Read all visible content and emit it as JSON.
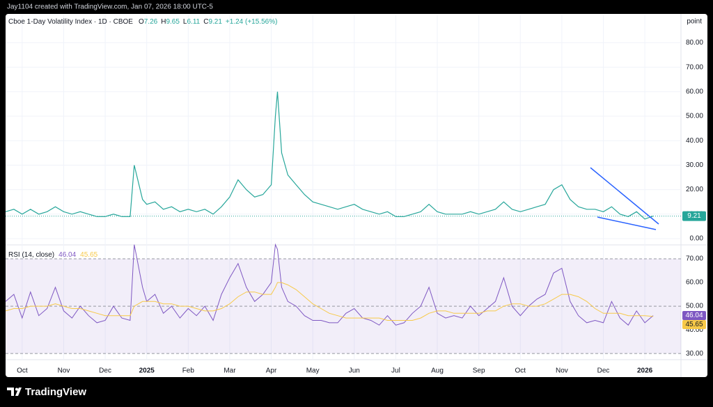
{
  "header": "Jay1104 created with TradingView.com, Jan 07, 2026 18:00 UTC-5",
  "brand": "TradingView",
  "chart_data": [
    {
      "type": "line",
      "title": "Cboe 1-Day Volatility Index · 1D · CBOE",
      "ohlc": [
        {
          "label": "O",
          "value": "7.26"
        },
        {
          "label": "H",
          "value": "9.65"
        },
        {
          "label": "L",
          "value": "6.11"
        },
        {
          "label": "C",
          "value": "9.21"
        }
      ],
      "change": "+1.24 (+15.56%)",
      "y_axis_label": "point",
      "color": "#26a69a",
      "grid": true,
      "xlim": [
        0.6,
        16.87
      ],
      "xticks": [
        {
          "value": 1,
          "label": "Oct"
        },
        {
          "value": 2,
          "label": "Nov"
        },
        {
          "value": 3,
          "label": "Dec"
        },
        {
          "value": 4,
          "label": "2025"
        },
        {
          "value": 5,
          "label": "Feb"
        },
        {
          "value": 6,
          "label": "Mar"
        },
        {
          "value": 7,
          "label": "Apr"
        },
        {
          "value": 8,
          "label": "May"
        },
        {
          "value": 9,
          "label": "Jun"
        },
        {
          "value": 10,
          "label": "Jul"
        },
        {
          "value": 11,
          "label": "Aug"
        },
        {
          "value": 12,
          "label": "Sep"
        },
        {
          "value": 13,
          "label": "Oct"
        },
        {
          "value": 14,
          "label": "Nov"
        },
        {
          "value": 15,
          "label": "Dec"
        },
        {
          "value": 16,
          "label": "2026"
        }
      ],
      "ylim": [
        -2.56,
        91.2
      ],
      "yticks": [
        {
          "value": 0,
          "label": "0.00"
        },
        {
          "value": 10,
          "label": "10.00"
        },
        {
          "value": 20,
          "label": "20.00"
        },
        {
          "value": 30,
          "label": "30.00"
        },
        {
          "value": 40,
          "label": "40.00"
        },
        {
          "value": 50,
          "label": "50.00"
        },
        {
          "value": 60,
          "label": "60.00"
        },
        {
          "value": 70,
          "label": "70.00"
        },
        {
          "value": 80,
          "label": "80.00"
        }
      ],
      "x": [
        0.6,
        0.8,
        1,
        1.2,
        1.4,
        1.6,
        1.8,
        2,
        2.2,
        2.4,
        2.6,
        2.8,
        3,
        3.2,
        3.4,
        3.6,
        3.7,
        3.9,
        4,
        4.2,
        4.4,
        4.6,
        4.8,
        5,
        5.2,
        5.4,
        5.6,
        5.8,
        6,
        6.2,
        6.4,
        6.6,
        6.8,
        7,
        7.1,
        7.15,
        7.25,
        7.4,
        7.6,
        7.8,
        8,
        8.2,
        8.4,
        8.6,
        8.8,
        9,
        9.2,
        9.4,
        9.6,
        9.8,
        10,
        10.2,
        10.4,
        10.6,
        10.8,
        11,
        11.2,
        11.4,
        11.6,
        11.8,
        12,
        12.2,
        12.4,
        12.6,
        12.8,
        13,
        13.2,
        13.4,
        13.6,
        13.8,
        14,
        14.2,
        14.4,
        14.6,
        14.8,
        15,
        15.2,
        15.4,
        15.6,
        15.8,
        16,
        16.2
      ],
      "values": [
        11,
        12,
        10,
        12,
        10,
        11,
        13,
        11,
        10,
        11,
        10,
        9,
        9,
        10,
        9,
        9,
        30,
        16,
        14,
        15,
        12,
        13,
        11,
        12,
        11,
        12,
        10,
        13,
        17,
        24,
        20,
        17,
        18,
        22,
        50,
        60,
        35,
        26,
        22,
        18,
        15,
        14,
        13,
        12,
        13,
        14,
        12,
        11,
        10,
        11,
        9,
        9,
        10,
        11,
        14,
        11,
        10,
        10,
        10,
        11,
        10,
        11,
        12,
        15,
        12,
        11,
        12,
        13,
        14,
        20,
        22,
        16,
        13,
        12,
        12,
        11,
        13,
        10,
        9,
        11,
        8,
        9.21
      ]
    },
    {
      "type": "line",
      "title": "RSI (14, close)",
      "ylim": [
        27.4,
        75
      ],
      "yticks": [
        {
          "value": 30,
          "label": "30.00"
        },
        {
          "value": 40,
          "label": "40.00"
        },
        {
          "value": 50,
          "label": "50.00"
        },
        {
          "value": 60,
          "label": "60.00"
        },
        {
          "value": 70,
          "label": "70.00"
        }
      ],
      "xlim": [
        0.6,
        16.87
      ],
      "x": [
        0.6,
        0.8,
        1,
        1.2,
        1.4,
        1.6,
        1.8,
        2,
        2.2,
        2.4,
        2.6,
        2.8,
        3,
        3.2,
        3.4,
        3.6,
        3.7,
        3.9,
        4,
        4.2,
        4.4,
        4.6,
        4.8,
        5,
        5.2,
        5.4,
        5.6,
        5.8,
        6,
        6.2,
        6.4,
        6.6,
        6.8,
        7,
        7.1,
        7.15,
        7.25,
        7.4,
        7.6,
        7.8,
        8,
        8.2,
        8.4,
        8.6,
        8.8,
        9,
        9.2,
        9.4,
        9.6,
        9.8,
        10,
        10.2,
        10.4,
        10.6,
        10.8,
        11,
        11.2,
        11.4,
        11.6,
        11.8,
        12,
        12.2,
        12.4,
        12.6,
        12.8,
        13,
        13.2,
        13.4,
        13.6,
        13.8,
        14,
        14.2,
        14.4,
        14.6,
        14.8,
        15,
        15.2,
        15.4,
        15.6,
        15.8,
        16,
        16.2
      ],
      "series": [
        {
          "color": "#7e57c2",
          "values": [
            52,
            55,
            45,
            56,
            46,
            49,
            58,
            48,
            45,
            50,
            46,
            43,
            44,
            50,
            45,
            44,
            76,
            58,
            52,
            55,
            47,
            50,
            45,
            49,
            46,
            50,
            44,
            55,
            62,
            68,
            58,
            52,
            55,
            60,
            76,
            74,
            58,
            52,
            50,
            46,
            44,
            44,
            43,
            43,
            47,
            49,
            45,
            44,
            42,
            46,
            42,
            43,
            47,
            50,
            58,
            47,
            45,
            46,
            45,
            50,
            46,
            49,
            52,
            62,
            50,
            46,
            50,
            53,
            55,
            64,
            66,
            52,
            46,
            43,
            44,
            43,
            52,
            45,
            42,
            48,
            43,
            46.04
          ]
        },
        {
          "color": "#f7c948",
          "values": [
            48,
            49,
            49,
            50,
            50,
            50,
            51,
            50,
            49,
            49,
            48,
            47,
            46,
            46,
            46,
            46,
            50,
            52,
            52,
            52,
            51,
            51,
            50,
            50,
            49,
            48,
            48,
            49,
            51,
            54,
            56,
            56,
            55,
            55,
            58,
            60,
            60,
            59,
            57,
            54,
            51,
            49,
            47,
            46,
            45,
            45,
            45,
            45,
            45,
            44,
            44,
            44,
            44,
            45,
            47,
            48,
            48,
            47,
            47,
            47,
            47,
            48,
            48,
            50,
            51,
            51,
            50,
            50,
            51,
            53,
            55,
            55,
            54,
            52,
            49,
            47,
            47,
            47,
            46,
            46,
            46,
            45.65
          ]
        }
      ]
    }
  ]
}
